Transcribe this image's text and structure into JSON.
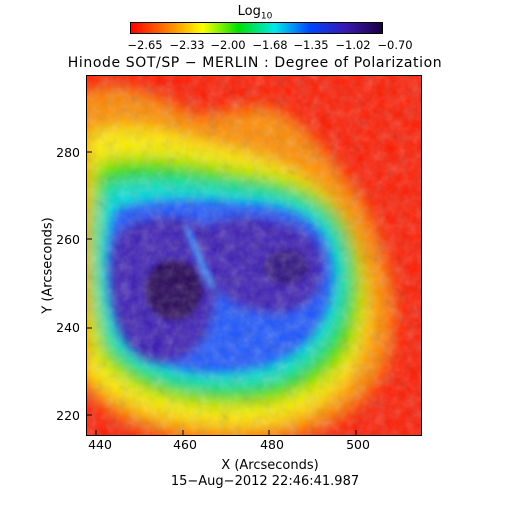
{
  "colorbar": {
    "label_base": "Log",
    "label_sub": "10",
    "ticks": [
      "−2.65",
      "−2.33",
      "−2.00",
      "−1.68",
      "−1.35",
      "−1.02",
      "−0.70"
    ],
    "stops": [
      "#ff0000",
      "#ff7a00",
      "#ffff00",
      "#00e000",
      "#00e8e8",
      "#0044ff",
      "#3a18b0",
      "#1a0040"
    ]
  },
  "title": "Hinode SOT/SP − MERLIN : Degree of Polarization",
  "axes": {
    "xlabel": "X (Arcseconds)",
    "ylabel": "Y (Arcseconds)",
    "xticks": [
      "440",
      "460",
      "480",
      "500"
    ],
    "yticks": [
      "220",
      "240",
      "260",
      "280"
    ]
  },
  "timestamp": "15−Aug−2012 22:46:41.987"
}
